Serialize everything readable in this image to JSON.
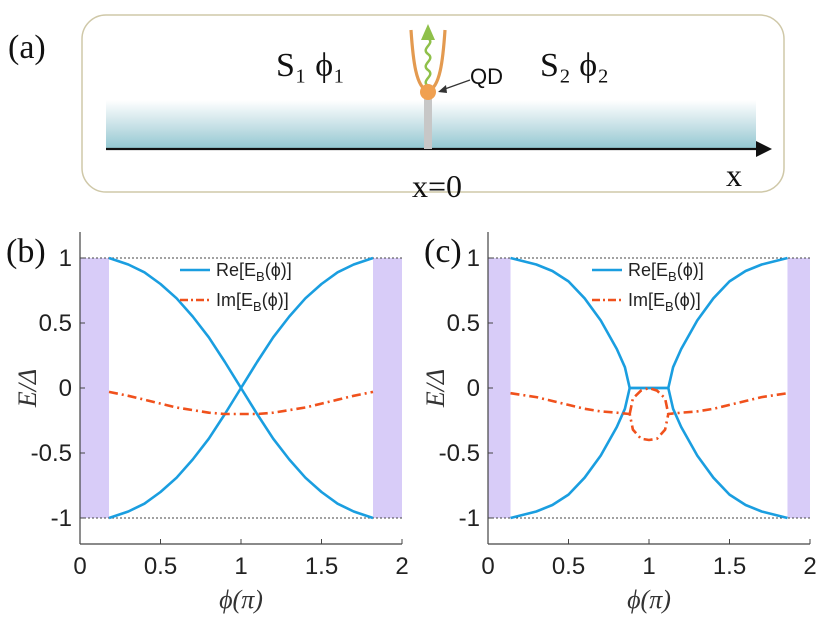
{
  "panel_a": {
    "label": "(a)",
    "left_lead": "S₁ ϕ₁",
    "right_lead": "S₂ ϕ₂",
    "qd_label": "QD",
    "x_axis_label": "x",
    "origin_label": "x=0"
  },
  "colors": {
    "re_line": "#1a9ee0",
    "im_line": "#f0511c",
    "shade": "#d8ccf8",
    "dot": "#f0a050",
    "wire": "#e39a50",
    "spring": "#8fc04a",
    "box_border": "#cfc8a8"
  },
  "chart_data": [
    {
      "type": "line",
      "panel_label": "(b)",
      "xlabel": "ϕ(π)",
      "ylabel": "E/Δ",
      "xlim": [
        0,
        2
      ],
      "ylim": [
        -1.2,
        1.2
      ],
      "xticks": [
        "0",
        "0.5",
        "1",
        "1.5",
        "2"
      ],
      "yticks": [
        "-1",
        "-0.5",
        "0",
        "0.5",
        "1"
      ],
      "reference_lines": [
        1,
        -1
      ],
      "shaded_regions": [
        [
          0,
          0.18
        ],
        [
          1.82,
          2
        ]
      ],
      "series": [
        {
          "name": "Re[E_B(ϕ)]",
          "legend": "Re[E",
          "legend_sub": "B",
          "legend_tail": "(ϕ)]",
          "style": "solid",
          "branch": "upper",
          "x": [
            0.18,
            0.3,
            0.4,
            0.5,
            0.6,
            0.7,
            0.8,
            0.9,
            1.0,
            1.1,
            1.2,
            1.3,
            1.4,
            1.5,
            1.6,
            1.7,
            1.82
          ],
          "y": [
            1.0,
            0.95,
            0.89,
            0.8,
            0.69,
            0.55,
            0.39,
            0.2,
            0.0,
            -0.2,
            -0.39,
            -0.55,
            -0.69,
            -0.8,
            -0.89,
            -0.95,
            -1.0
          ]
        },
        {
          "name": "Re[E_B(ϕ)] lower",
          "style": "solid",
          "branch": "lower",
          "x": [
            0.18,
            0.3,
            0.4,
            0.5,
            0.6,
            0.7,
            0.8,
            0.9,
            1.0,
            1.1,
            1.2,
            1.3,
            1.4,
            1.5,
            1.6,
            1.7,
            1.82
          ],
          "y": [
            -1.0,
            -0.95,
            -0.89,
            -0.8,
            -0.69,
            -0.55,
            -0.39,
            -0.2,
            0.0,
            0.2,
            0.39,
            0.55,
            0.69,
            0.8,
            0.89,
            0.95,
            1.0
          ]
        },
        {
          "name": "Im[E_B(ϕ)]",
          "legend": "Im[E",
          "legend_sub": "B",
          "legend_tail": "(ϕ)]",
          "style": "dashdot",
          "x": [
            0.18,
            0.3,
            0.4,
            0.5,
            0.6,
            0.7,
            0.8,
            0.9,
            1.0,
            1.1,
            1.2,
            1.3,
            1.4,
            1.5,
            1.6,
            1.7,
            1.82
          ],
          "y": [
            -0.03,
            -0.06,
            -0.09,
            -0.12,
            -0.15,
            -0.17,
            -0.19,
            -0.2,
            -0.2,
            -0.2,
            -0.19,
            -0.17,
            -0.15,
            -0.12,
            -0.09,
            -0.06,
            -0.03
          ]
        }
      ]
    },
    {
      "type": "line",
      "panel_label": "(c)",
      "xlabel": "ϕ(π)",
      "ylabel": "E/Δ",
      "xlim": [
        0,
        2
      ],
      "ylim": [
        -1.2,
        1.2
      ],
      "xticks": [
        "0",
        "0.5",
        "1",
        "1.5",
        "2"
      ],
      "yticks": [
        "-1",
        "-0.5",
        "0",
        "0.5",
        "1"
      ],
      "reference_lines": [
        1,
        -1
      ],
      "shaded_regions": [
        [
          0,
          0.14
        ],
        [
          1.86,
          2
        ]
      ],
      "series": [
        {
          "name": "Re[E_B(ϕ)]",
          "legend": "Re[E",
          "legend_sub": "B",
          "legend_tail": "(ϕ)]",
          "style": "solid",
          "branch": "upper",
          "x": [
            0.14,
            0.3,
            0.4,
            0.5,
            0.6,
            0.7,
            0.8,
            0.85,
            0.88,
            1.12,
            1.15,
            1.2,
            1.3,
            1.4,
            1.5,
            1.6,
            1.7,
            1.86
          ],
          "y": [
            1.0,
            0.95,
            0.9,
            0.82,
            0.69,
            0.52,
            0.3,
            0.16,
            0.0,
            0.0,
            0.16,
            0.3,
            0.52,
            0.69,
            0.82,
            0.9,
            0.95,
            1.0
          ]
        },
        {
          "name": "Re[E_B(ϕ)] lower",
          "style": "solid",
          "branch": "lower",
          "x": [
            0.14,
            0.3,
            0.4,
            0.5,
            0.6,
            0.7,
            0.8,
            0.85,
            0.88,
            1.12,
            1.15,
            1.2,
            1.3,
            1.4,
            1.5,
            1.6,
            1.7,
            1.86
          ],
          "y": [
            -1.0,
            -0.95,
            -0.9,
            -0.82,
            -0.69,
            -0.52,
            -0.3,
            -0.16,
            0.0,
            0.0,
            -0.16,
            -0.3,
            -0.52,
            -0.69,
            -0.82,
            -0.9,
            -0.95,
            -1.0
          ]
        },
        {
          "name": "Im[E_B(ϕ)]",
          "legend": "Im[E",
          "legend_sub": "B",
          "legend_tail": "(ϕ)]",
          "style": "dashdot",
          "x": [
            0.14,
            0.3,
            0.4,
            0.5,
            0.6,
            0.7,
            0.8,
            0.88,
            0.9,
            0.95,
            1.0,
            1.05,
            1.1,
            1.12,
            1.2,
            1.3,
            1.4,
            1.5,
            1.6,
            1.7,
            1.86
          ],
          "y": [
            -0.04,
            -0.07,
            -0.1,
            -0.13,
            -0.16,
            -0.18,
            -0.19,
            -0.2,
            -0.32,
            -0.39,
            -0.4,
            -0.39,
            -0.32,
            -0.2,
            -0.19,
            -0.18,
            -0.16,
            -0.13,
            -0.1,
            -0.07,
            -0.04
          ]
        },
        {
          "name": "Im[E_B(ϕ)] loop upper",
          "style": "dashdot",
          "x": [
            0.88,
            0.9,
            0.95,
            1.0,
            1.05,
            1.1,
            1.12
          ],
          "y": [
            -0.2,
            -0.08,
            -0.02,
            0.0,
            -0.02,
            -0.08,
            -0.2
          ]
        }
      ]
    }
  ]
}
